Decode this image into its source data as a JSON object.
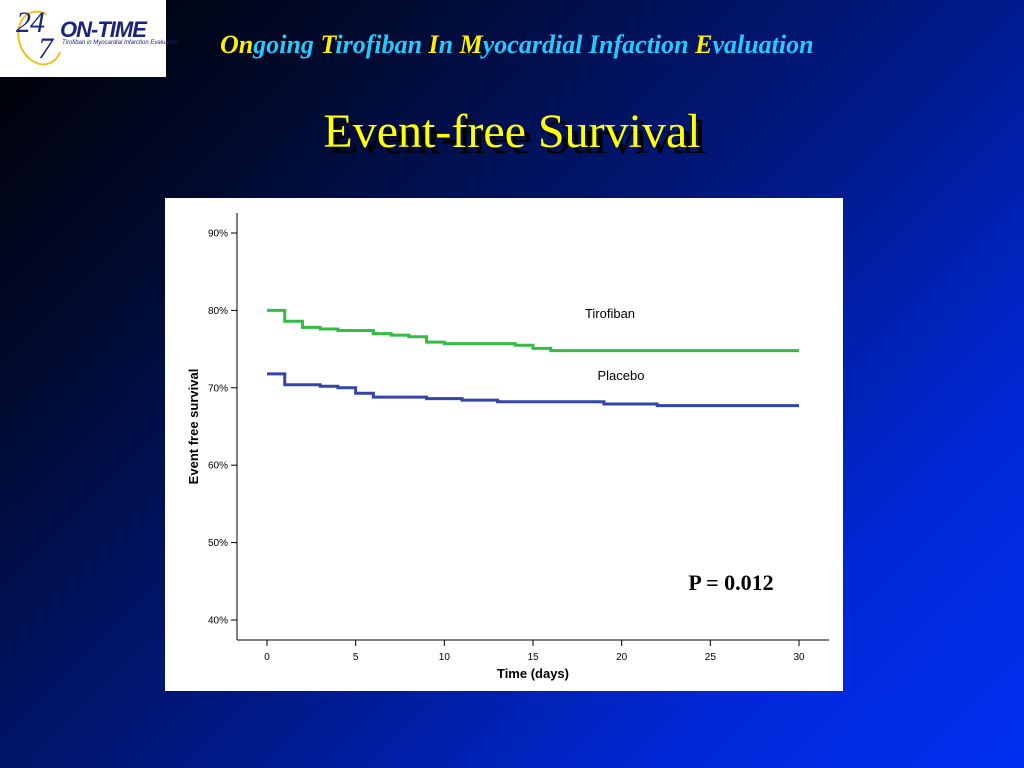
{
  "logo": {
    "num24": "24",
    "num7": "7",
    "name": "ON-TIME",
    "tagline": "Tirofiban in Myocardial Infarction Evaluation"
  },
  "header": {
    "title_parts": [
      {
        "text": "On",
        "cap": true
      },
      {
        "text": "going ",
        "cap": false
      },
      {
        "text": "T",
        "cap": true
      },
      {
        "text": "irofiban ",
        "cap": false
      },
      {
        "text": "I",
        "cap": true
      },
      {
        "text": "n ",
        "cap": false
      },
      {
        "text": "M",
        "cap": true
      },
      {
        "text": "yocardial Infaction ",
        "cap": false
      },
      {
        "text": "E",
        "cap": true
      },
      {
        "text": "valuation",
        "cap": false
      }
    ]
  },
  "slide_title": "Event-free Survival",
  "colors": {
    "tirofiban": "#33bb44",
    "placebo": "#3344aa",
    "title": "#ffff00",
    "header": "#22ccff",
    "header_caps": "#ffee00"
  },
  "chart_data": {
    "type": "line",
    "step": true,
    "xlabel": "Time (days)",
    "ylabel": "Event free survival",
    "xlim": [
      0,
      30
    ],
    "ylim": [
      40,
      90
    ],
    "xticks": [
      0,
      5,
      10,
      15,
      20,
      25,
      30
    ],
    "yticks": [
      40,
      50,
      60,
      70,
      80,
      90
    ],
    "ytick_labels": [
      "40%",
      "50%",
      "60%",
      "70%",
      "80%",
      "90%"
    ],
    "grid": false,
    "series": [
      {
        "name": "Tirofiban",
        "color": "#33bb44",
        "x": [
          0,
          1,
          2,
          3,
          4,
          6,
          7,
          8,
          9,
          10,
          14,
          15,
          16,
          30
        ],
        "y": [
          80.0,
          78.6,
          77.8,
          77.6,
          77.4,
          77.0,
          76.8,
          76.6,
          75.9,
          75.7,
          75.5,
          75.1,
          74.8,
          74.8
        ]
      },
      {
        "name": "Placebo",
        "color": "#3344aa",
        "x": [
          0,
          1,
          3,
          4,
          5,
          6,
          9,
          11,
          13,
          19,
          22,
          30
        ],
        "y": [
          71.8,
          70.4,
          70.2,
          70.0,
          69.3,
          68.8,
          68.6,
          68.4,
          68.2,
          67.9,
          67.7,
          67.7
        ]
      }
    ],
    "annotation": "P = 0.012"
  }
}
